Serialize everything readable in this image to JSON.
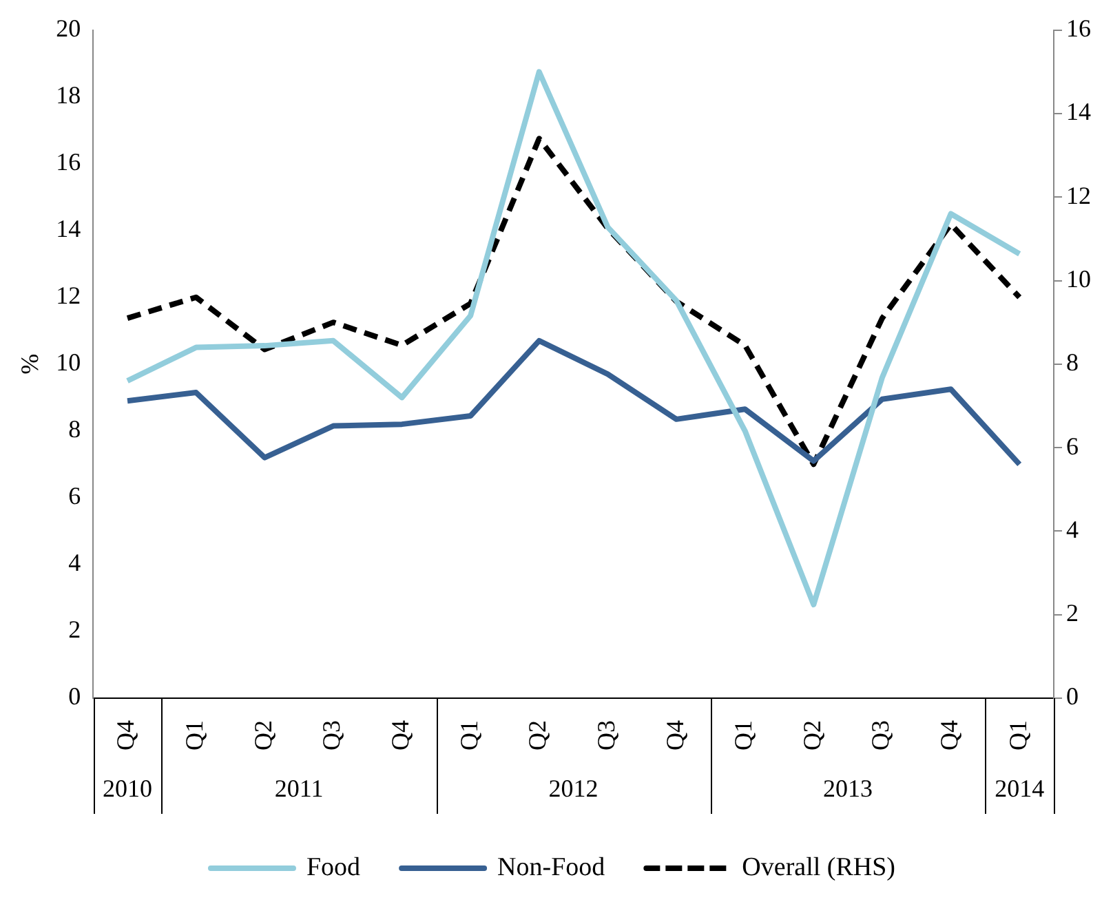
{
  "chart_data": {
    "type": "line",
    "ylabel": "%",
    "categories": [
      "Q4",
      "Q1",
      "Q2",
      "Q3",
      "Q4",
      "Q1",
      "Q2",
      "Q3",
      "Q4",
      "Q1",
      "Q2",
      "Q3",
      "Q4",
      "Q1"
    ],
    "annotations": [
      "2010",
      "2011",
      "2012",
      "2013",
      "2014"
    ],
    "series": [
      {
        "name": "Food",
        "color": "#92cddc",
        "values": [
          9.5,
          10.5,
          10.55,
          10.7,
          9.0,
          11.45,
          18.75,
          14.1,
          11.9,
          8.0,
          2.8,
          9.6,
          14.5,
          13.3
        ]
      },
      {
        "name": "Non-Food",
        "color": "#376092",
        "values": [
          8.9,
          9.15,
          7.2,
          8.15,
          8.2,
          8.45,
          10.7,
          9.7,
          8.35,
          8.65,
          7.1,
          8.95,
          9.25,
          7.0
        ]
      },
      {
        "name": "Overall (RHS)",
        "color": "#000000",
        "axis": "y2",
        "line_style": "dashed",
        "values": [
          9.1,
          9.6,
          8.35,
          9.0,
          8.45,
          9.45,
          13.4,
          11.25,
          9.5,
          8.45,
          5.6,
          9.1,
          11.35,
          9.6
        ]
      }
    ],
    "ylim": [
      0,
      20
    ],
    "yticks": [
      0,
      2,
      4,
      6,
      8,
      10,
      12,
      14,
      16,
      18,
      20
    ],
    "y2lim": [
      0,
      16
    ],
    "y2ticks": [
      0,
      2,
      4,
      6,
      8,
      10,
      12,
      14,
      16
    ],
    "legend": "bottom",
    "marker": "none"
  }
}
